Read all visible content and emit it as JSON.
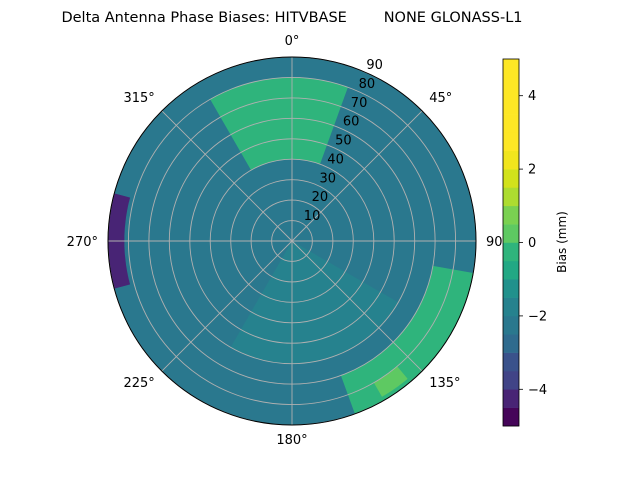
{
  "chart_data": {
    "type": "heatmap",
    "projection": "polar",
    "title": "Delta Antenna Phase Biases: HITVBASE        NONE GLONASS-L1",
    "azimuth_direction": "clockwise",
    "azimuth_zero": "top",
    "azimuth_ticks": [
      {
        "deg": 0,
        "label": "0°"
      },
      {
        "deg": 45,
        "label": "45°"
      },
      {
        "deg": 90,
        "label": "90"
      },
      {
        "deg": 135,
        "label": "135°"
      },
      {
        "deg": 180,
        "label": "180°"
      },
      {
        "deg": 225,
        "label": "225°"
      },
      {
        "deg": 270,
        "label": "270°"
      },
      {
        "deg": 315,
        "label": "315°"
      }
    ],
    "radial_ticks": [
      10,
      20,
      30,
      40,
      50,
      60,
      70,
      80,
      90
    ],
    "radial_range": [
      0,
      90
    ],
    "grid": true,
    "colorbar": {
      "label": "Bias (mm)",
      "range": [
        -5,
        5
      ],
      "ticks": [
        -4,
        -2,
        0,
        2,
        4
      ],
      "levels": [
        -5,
        -4.5,
        -4,
        -3.5,
        -3,
        -2.5,
        -2,
        -1.5,
        -1,
        -0.5,
        0,
        0.5,
        1,
        1.5,
        2,
        2.5,
        3,
        3.5,
        4,
        4.5,
        5
      ],
      "colors": [
        "#450559",
        "#482475",
        "#414487",
        "#3a528b",
        "#2f6b8e",
        "#2a788e",
        "#26828e",
        "#21918c",
        "#22a884",
        "#2fb47c",
        "#5ec962",
        "#7ad151",
        "#addc30",
        "#d2e21b",
        "#f1e51d",
        "#fde725",
        "#fde725",
        "#fde725",
        "#fde725",
        "#fde725"
      ]
    },
    "contour_regions": [
      {
        "level": -1.5,
        "color": "#2f6b8e",
        "azimuth_range": [
          30,
          110
        ],
        "elevation_range": [
          20,
          85
        ]
      },
      {
        "level": -1.5,
        "color": "#2f6b8e",
        "azimuth_range": [
          195,
          265
        ],
        "elevation_range": [
          55,
          90
        ]
      },
      {
        "level": -1.0,
        "color": "#2a788e",
        "azimuth_range": [
          0,
          360
        ],
        "elevation_range": [
          0,
          90
        ]
      },
      {
        "level": -0.5,
        "color": "#26828e",
        "azimuth_range": [
          120,
          210
        ],
        "elevation_range": [
          0,
          60
        ]
      },
      {
        "level": 1.0,
        "color": "#2fb47c",
        "azimuth_range": [
          330,
          20
        ],
        "elevation_range": [
          40,
          80
        ]
      },
      {
        "level": 1.0,
        "color": "#2fb47c",
        "azimuth_range": [
          100,
          160
        ],
        "elevation_range": [
          70,
          90
        ]
      },
      {
        "level": 2.0,
        "color": "#5ec962",
        "azimuth_range": [
          140,
          150
        ],
        "elevation_range": [
          80,
          88
        ]
      },
      {
        "level": -3.5,
        "color": "#482475",
        "azimuth_range": [
          255,
          285
        ],
        "elevation_range": [
          82,
          90
        ]
      }
    ]
  }
}
